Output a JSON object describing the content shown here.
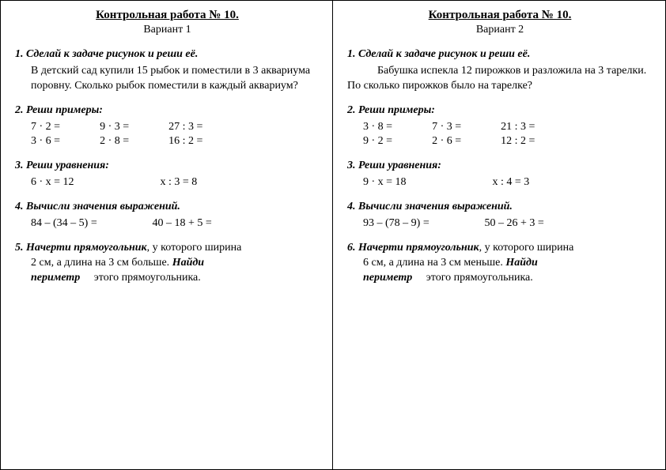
{
  "columns": [
    {
      "title": "Контрольная работа № 10.",
      "variant": "Вариант 1",
      "t1": {
        "num": "1. ",
        "head": "Сделай к задаче рисунок и реши её.",
        "body": "В детский сад купили 15 рыбок и поместили в 3 аквариума поровну. Сколько рыбок поместили в каждый аквариум?"
      },
      "t2": {
        "num": "2. ",
        "head": "Реши примеры:",
        "rows": [
          [
            "7 · 2 =",
            "9 · 3 =",
            "27 : 3 ="
          ],
          [
            "3 · 6 =",
            "2 · 8 =",
            "16 : 2 ="
          ]
        ]
      },
      "t3": {
        "num": "3. ",
        "head": "Реши уравнения:",
        "eq1": "6 · х = 12",
        "eq2": "х : 3 = 8"
      },
      "t4": {
        "num": "4. ",
        "head": "Вычисли значения выражений.",
        "e1": "84 – (34 – 5) =",
        "e2": "40 – 18 + 5 ="
      },
      "t5": {
        "num": "5. ",
        "p1a": "Начерти прямоугольник",
        "p1b": ", у которого ширина",
        "p2a": "2 см, а длина на 3 см больше. ",
        "p2b": "Найди",
        "p3a": "периметр",
        "p3b": "     этого прямоугольника."
      }
    },
    {
      "title": "Контрольная работа № 10.",
      "variant": "Вариант 2",
      "t1": {
        "num": "1. ",
        "head": "Сделай к задаче рисунок и реши её.",
        "body": "Бабушка испекла 12 пирожков и разложила на 3 тарелки. По сколько пирожков было на тарелке?"
      },
      "t2": {
        "num": "2. ",
        "head": "Реши примеры:",
        "rows": [
          [
            "3 · 8 =",
            "7 · 3 =",
            "21 : 3 ="
          ],
          [
            "9 · 2 =",
            "2 · 6 =",
            "12 : 2 ="
          ]
        ]
      },
      "t3": {
        "num": "3. ",
        "head": "Реши уравнения:",
        "eq1": "9 · х = 18",
        "eq2": "х : 4 = 3"
      },
      "t4": {
        "num": "4. ",
        "head": "Вычисли значения выражений.",
        "e1": "93 – (78 – 9) =",
        "e2": "50 – 26 + 3 ="
      },
      "t5": {
        "num": "6. ",
        "p1a": "Начерти прямоугольник",
        "p1b": ", у которого ширина",
        "p2a": " 6 см, а длина на 3 см меньше. ",
        "p2b": "Найди",
        "p3a": "периметр",
        "p3b": "     этого прямоугольника."
      }
    }
  ]
}
